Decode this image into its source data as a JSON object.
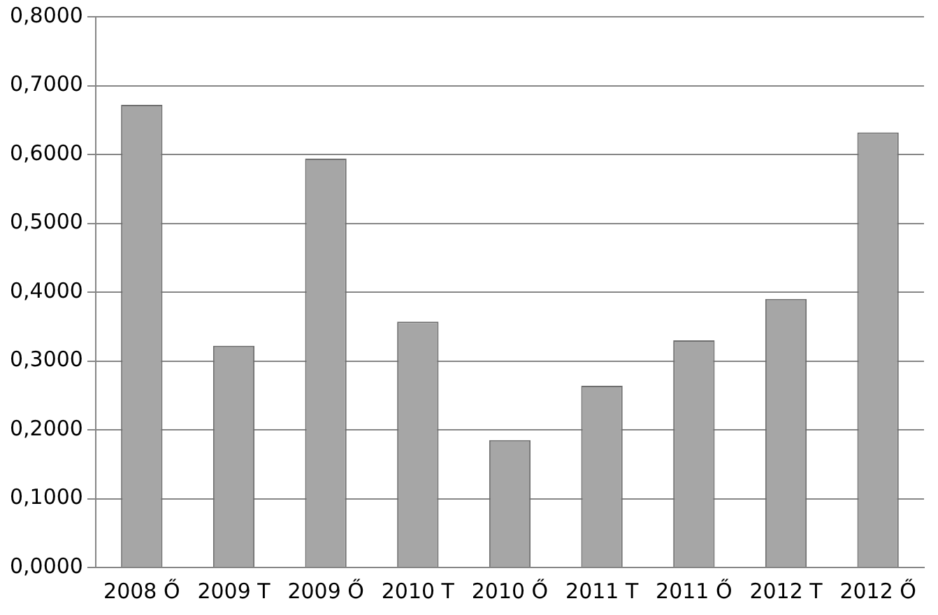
{
  "chart_data": {
    "type": "bar",
    "categories": [
      "2008 Ő",
      "2009 T",
      "2009 Ő",
      "2010 T",
      "2010 Ő",
      "2011 T",
      "2011 Ő",
      "2012 T",
      "2012 Ő"
    ],
    "values": [
      0.672,
      0.322,
      0.594,
      0.357,
      0.185,
      0.264,
      0.33,
      0.39,
      0.632
    ],
    "color": "#a6a6a6",
    "ylim": [
      0,
      0.8
    ],
    "yticks": [
      {
        "value": 0,
        "label": "0,0000"
      },
      {
        "value": 0.1,
        "label": "0,1000"
      },
      {
        "value": 0.2,
        "label": "0,2000"
      },
      {
        "value": 0.3,
        "label": "0,3000"
      },
      {
        "value": 0.4,
        "label": "0,4000"
      },
      {
        "value": 0.5,
        "label": "0,5000"
      },
      {
        "value": 0.6,
        "label": "0,6000"
      },
      {
        "value": 0.7,
        "label": "0,7000"
      },
      {
        "value": 0.8,
        "label": "0,8000"
      }
    ],
    "grid": "y",
    "legend": false
  }
}
